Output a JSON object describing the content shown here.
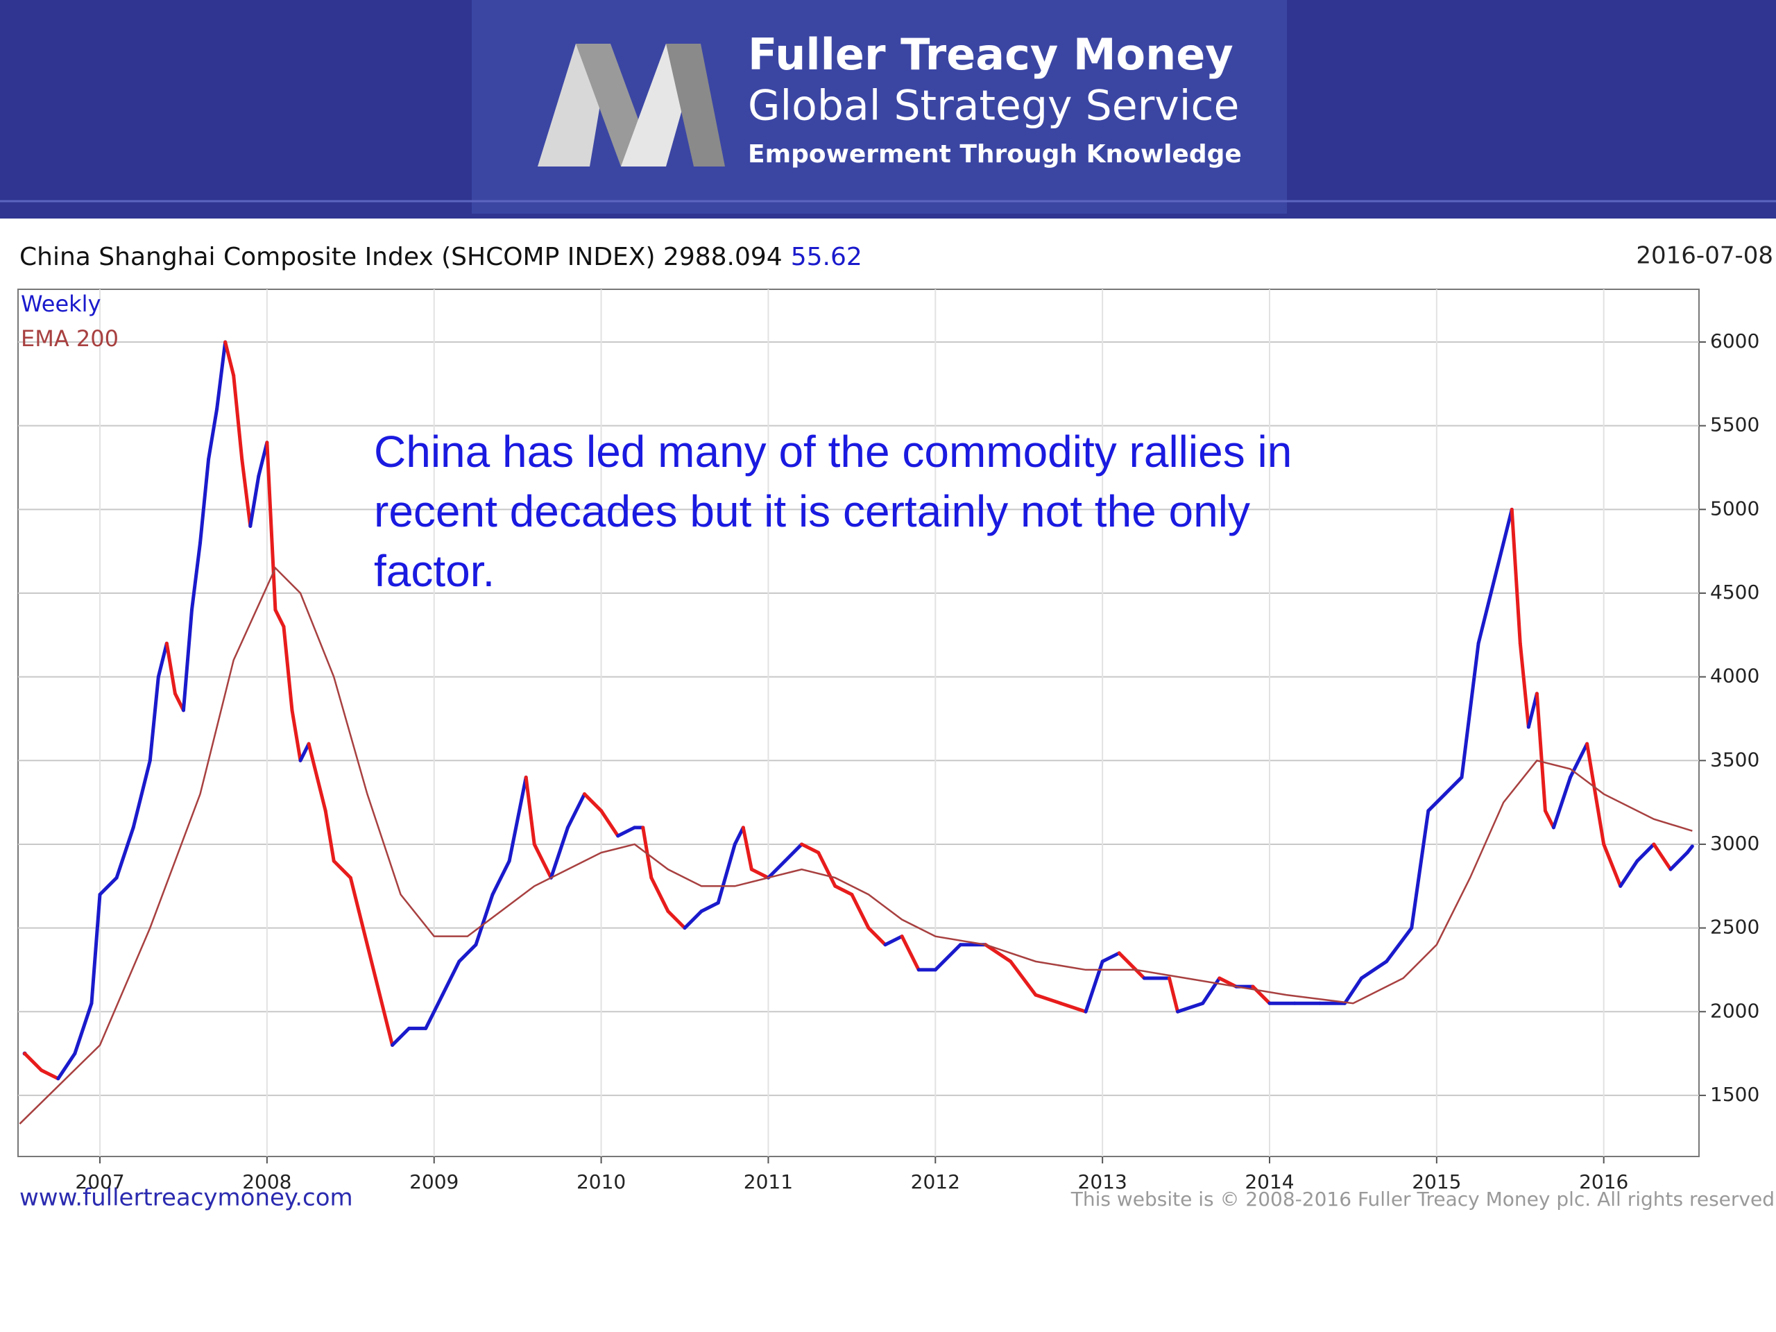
{
  "header": {
    "brand": "Fuller Treacy Money",
    "service": "Global Strategy Service",
    "tagline": "Empowerment Through Knowledge"
  },
  "chart_data": {
    "type": "line",
    "title": "China Shanghai Composite Index (SHCOMP INDEX) 2988.094",
    "change": "55.62",
    "date": "2016-07-08",
    "annotation": [
      "China has led many of the commodity rallies in",
      "recent decades but it is certainly not the only",
      "factor."
    ],
    "xlim": [
      2006.51,
      2016.57
    ],
    "xticks": [
      2007,
      2008,
      2009,
      2010,
      2011,
      2012,
      2013,
      2014,
      2015,
      2016
    ],
    "ylim": [
      1135,
      6315
    ],
    "yticks": [
      1500,
      2000,
      2500,
      3000,
      3500,
      4000,
      4500,
      5000,
      5500,
      6000
    ],
    "grid": true,
    "series": [
      {
        "name": "Weekly",
        "color": "#1a1acc",
        "down_color": "#e81c1c",
        "x": [
          2006.55,
          2006.65,
          2006.75,
          2006.85,
          2006.95,
          2007.0,
          2007.1,
          2007.2,
          2007.3,
          2007.35,
          2007.4,
          2007.45,
          2007.5,
          2007.55,
          2007.6,
          2007.65,
          2007.7,
          2007.75,
          2007.8,
          2007.85,
          2007.9,
          2007.95,
          2008.0,
          2008.05,
          2008.1,
          2008.15,
          2008.2,
          2008.25,
          2008.3,
          2008.35,
          2008.4,
          2008.5,
          2008.55,
          2008.65,
          2008.75,
          2008.85,
          2008.95,
          2009.05,
          2009.15,
          2009.25,
          2009.35,
          2009.45,
          2009.55,
          2009.6,
          2009.7,
          2009.8,
          2009.9,
          2010.0,
          2010.1,
          2010.2,
          2010.25,
          2010.3,
          2010.4,
          2010.5,
          2010.6,
          2010.7,
          2010.8,
          2010.85,
          2010.9,
          2011.0,
          2011.1,
          2011.2,
          2011.3,
          2011.4,
          2011.5,
          2011.6,
          2011.7,
          2011.8,
          2011.9,
          2012.0,
          2012.15,
          2012.3,
          2012.45,
          2012.6,
          2012.75,
          2012.9,
          2013.0,
          2013.1,
          2013.25,
          2013.4,
          2013.45,
          2013.6,
          2013.7,
          2013.8,
          2013.9,
          2014.0,
          2014.15,
          2014.3,
          2014.45,
          2014.55,
          2014.7,
          2014.85,
          2014.95,
          2015.05,
          2015.15,
          2015.25,
          2015.35,
          2015.45,
          2015.5,
          2015.55,
          2015.6,
          2015.65,
          2015.7,
          2015.8,
          2015.9,
          2016.0,
          2016.1,
          2016.2,
          2016.3,
          2016.4,
          2016.5,
          2016.53
        ],
        "values": [
          1750,
          1650,
          1600,
          1750,
          2050,
          2700,
          2800,
          3100,
          3500,
          4000,
          4200,
          3900,
          3800,
          4400,
          4800,
          5300,
          5600,
          6000,
          5800,
          5300,
          4900,
          5200,
          5400,
          4400,
          4300,
          3800,
          3500,
          3600,
          3400,
          3200,
          2900,
          2800,
          2600,
          2200,
          1800,
          1900,
          1900,
          2100,
          2300,
          2400,
          2700,
          2900,
          3400,
          3000,
          2800,
          3100,
          3300,
          3200,
          3050,
          3100,
          3100,
          2800,
          2600,
          2500,
          2600,
          2650,
          3000,
          3100,
          2850,
          2800,
          2900,
          3000,
          2950,
          2750,
          2700,
          2500,
          2400,
          2450,
          2250,
          2250,
          2400,
          2400,
          2300,
          2100,
          2050,
          2000,
          2300,
          2350,
          2200,
          2200,
          2000,
          2050,
          2200,
          2150,
          2150,
          2050,
          2050,
          2050,
          2050,
          2200,
          2300,
          2500,
          3200,
          3300,
          3400,
          4200,
          4600,
          5000,
          4200,
          3700,
          3900,
          3200,
          3100,
          3400,
          3600,
          3000,
          2750,
          2900,
          3000,
          2850,
          2950,
          2988
        ]
      },
      {
        "name": "EMA 200",
        "color": "#a84040",
        "x": [
          2006.52,
          2007.0,
          2007.3,
          2007.6,
          2007.8,
          2008.05,
          2008.2,
          2008.4,
          2008.6,
          2008.8,
          2009.0,
          2009.2,
          2009.4,
          2009.6,
          2009.8,
          2010.0,
          2010.2,
          2010.4,
          2010.6,
          2010.8,
          2011.0,
          2011.2,
          2011.4,
          2011.6,
          2011.8,
          2012.0,
          2012.3,
          2012.6,
          2012.9,
          2013.2,
          2013.5,
          2013.8,
          2014.1,
          2014.5,
          2014.8,
          2015.0,
          2015.2,
          2015.4,
          2015.6,
          2015.8,
          2016.0,
          2016.3,
          2016.53
        ],
        "values": [
          1330,
          1800,
          2500,
          3300,
          4100,
          4650,
          4500,
          4000,
          3300,
          2700,
          2450,
          2450,
          2600,
          2750,
          2850,
          2950,
          3000,
          2850,
          2750,
          2750,
          2800,
          2850,
          2800,
          2700,
          2550,
          2450,
          2400,
          2300,
          2250,
          2250,
          2200,
          2150,
          2100,
          2050,
          2200,
          2400,
          2800,
          3250,
          3500,
          3450,
          3300,
          3150,
          3080
        ]
      }
    ],
    "source": "www.fullertreacymoney.com",
    "copyright": "This website is © 2008-2016 Fuller Treacy Money plc. All rights reserved"
  }
}
